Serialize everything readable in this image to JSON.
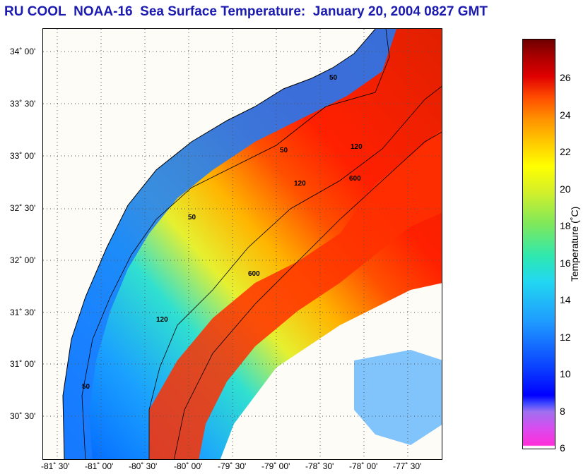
{
  "title": {
    "org": "RU COOL",
    "satellite": "NOAA-16",
    "product": "Sea Surface Temperature:",
    "datetime": "January 20, 2004 0827 GMT"
  },
  "map": {
    "lat_labels": [
      "34˚ 00'",
      "33˚ 30'",
      "33˚ 00'",
      "32˚ 30'",
      "32˚ 00'",
      "31˚ 30'",
      "31˚ 00'",
      "30˚ 30'"
    ],
    "lon_labels": [
      "-81˚ 30'",
      "-81˚ 00'",
      "-80˚ 30'",
      "-80˚ 00'",
      "-79˚ 30'",
      "-79˚ 00'",
      "-78˚ 30'",
      "-78˚ 00'",
      "-77˚ 30'"
    ],
    "isobath_labels": [
      "50",
      "120",
      "600"
    ],
    "land_color": "#fdfcf6"
  },
  "colorbar": {
    "label": "Temperature (˚C)",
    "ticks": [
      "26",
      "24",
      "22",
      "20",
      "18",
      "16",
      "14",
      "12",
      "10",
      "8",
      "6"
    ],
    "min": 5,
    "max": 27
  }
}
